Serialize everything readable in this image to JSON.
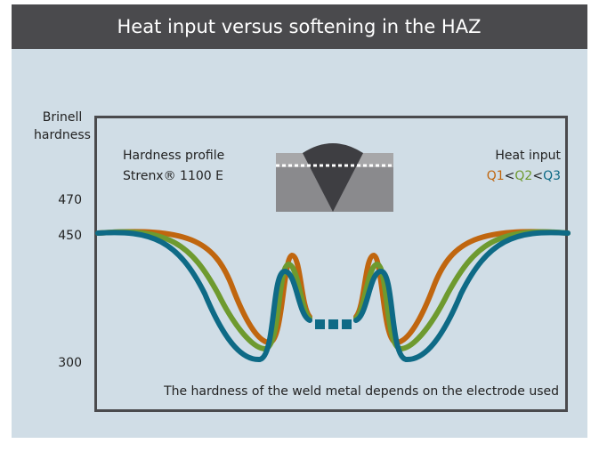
{
  "title": "Heat input versus softening in the HAZ",
  "y_axis": {
    "label_lines": [
      "Brinell",
      "hardness"
    ],
    "ticks": [
      "470",
      "450",
      "300"
    ]
  },
  "profile_label": [
    "Hardness profile",
    "Strenx® 1100 E"
  ],
  "heat_input": {
    "label": "Heat input",
    "legend": [
      {
        "name": "Q1",
        "color": "#c0660f"
      },
      {
        "name": "Q2",
        "color": "#6e9a2f"
      },
      {
        "name": "Q3",
        "color": "#0e6a86"
      }
    ],
    "separator": "<"
  },
  "note": "The hardness of the weld metal depends on the electrode used"
}
